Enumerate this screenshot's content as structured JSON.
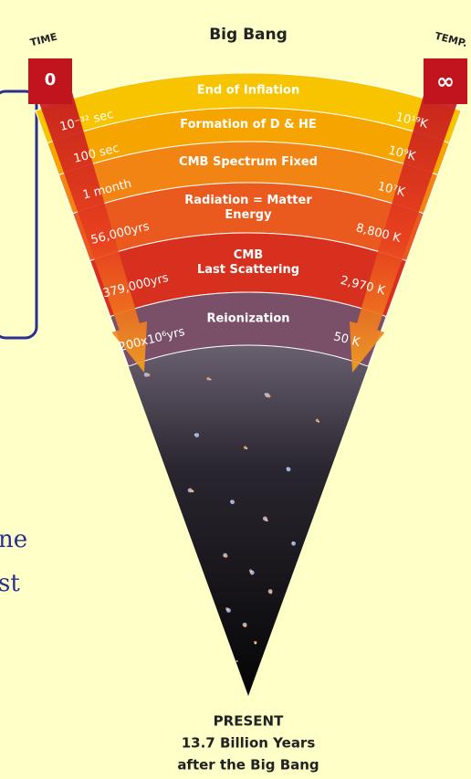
{
  "header": {
    "time_label": "TIME",
    "time_start": "0",
    "title": "Big Bang",
    "temp_label": "TEMP.",
    "temp_start": "∞"
  },
  "bands": [
    {
      "event": [
        "End of Inflation"
      ],
      "time": "10⁻³² sec",
      "temp": "10¹⁹K"
    },
    {
      "event": [
        "Formation of D & HE"
      ],
      "time": "100 sec",
      "temp": "10⁹K"
    },
    {
      "event": [
        "CMB Spectrum Fixed"
      ],
      "time": "1 month",
      "temp": "10⁷K"
    },
    {
      "event": [
        "Radiation = Matter",
        "Energy"
      ],
      "time": "56,000yrs",
      "temp": "8,800 K"
    },
    {
      "event": [
        "CMB",
        "Last Scattering"
      ],
      "time": "379,000yrs",
      "temp": "2,970 K"
    },
    {
      "event": [
        "Reionization"
      ],
      "time": "200x10⁶yrs",
      "temp": "50 K"
    }
  ],
  "footer": {
    "lines": [
      "PRESENT",
      "13.7 Billion Years",
      "after the Big Bang"
    ]
  },
  "side_text": [
    "ne",
    "st"
  ]
}
